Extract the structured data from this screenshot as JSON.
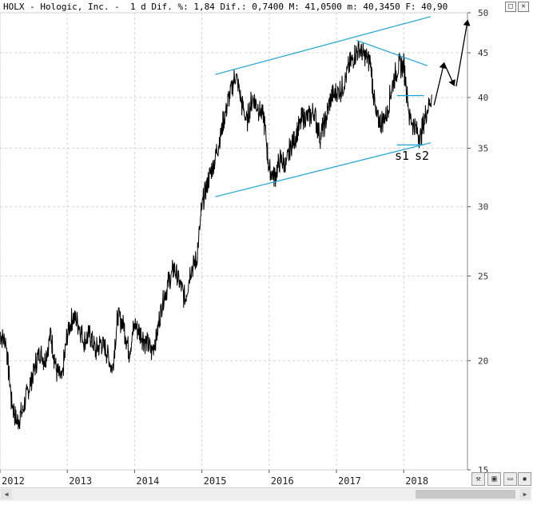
{
  "header": {
    "symbol": "HOLX",
    "company": "Hologic, Inc.",
    "text": "HOLX - Hologic, Inc. -  1 d Dif. %: 1,84 Dif.: 0,7400 M: 41,0500 m: 40,3450 F: 40,90"
  },
  "window_buttons": [
    "□",
    "✕"
  ],
  "toolbar": {
    "icons": [
      "ruler-icon",
      "save-icon",
      "minimize-icon",
      "close-icon"
    ]
  },
  "chart_data": {
    "type": "line",
    "title": "HOLX - Hologic, Inc.",
    "scale": "log",
    "ylim": [
      15,
      50
    ],
    "y_ticks": [
      15,
      20,
      25,
      30,
      35,
      40,
      45,
      50
    ],
    "x_ticks": [
      "2012",
      "2013",
      "2014",
      "2015",
      "2016",
      "2017",
      "2018"
    ],
    "grid": true,
    "series": [
      {
        "values": [
          [
            "2012-01",
            21.5
          ],
          [
            "2012-02",
            21.0
          ],
          [
            "2012-03",
            18.0
          ],
          [
            "2012-04",
            17.0
          ],
          [
            "2012-05",
            17.5
          ],
          [
            "2012-06",
            18.5
          ],
          [
            "2012-07",
            19.5
          ],
          [
            "2012-08",
            20.5
          ],
          [
            "2012-09",
            20.0
          ],
          [
            "2012-10",
            21.5
          ],
          [
            "2012-11",
            19.5
          ],
          [
            "2012-12",
            19.0
          ],
          [
            "2013-01",
            21.5
          ],
          [
            "2013-02",
            22.5
          ],
          [
            "2013-03",
            22.0
          ],
          [
            "2013-04",
            21.0
          ],
          [
            "2013-05",
            21.5
          ],
          [
            "2013-06",
            20.5
          ],
          [
            "2013-07",
            21.0
          ],
          [
            "2013-08",
            20.5
          ],
          [
            "2013-09",
            19.5
          ],
          [
            "2013-10",
            22.5
          ],
          [
            "2013-11",
            22.0
          ],
          [
            "2013-12",
            20.5
          ],
          [
            "2014-01",
            22.0
          ],
          [
            "2014-02",
            21.5
          ],
          [
            "2014-03",
            21.0
          ],
          [
            "2014-04",
            20.5
          ],
          [
            "2014-05",
            21.5
          ],
          [
            "2014-06",
            23.5
          ],
          [
            "2014-07",
            24.5
          ],
          [
            "2014-08",
            25.5
          ],
          [
            "2014-09",
            24.5
          ],
          [
            "2014-10",
            23.5
          ],
          [
            "2014-11",
            25.5
          ],
          [
            "2014-12",
            26.0
          ],
          [
            "2015-01",
            30.0
          ],
          [
            "2015-02",
            32.0
          ],
          [
            "2015-03",
            33.5
          ],
          [
            "2015-04",
            35.5
          ],
          [
            "2015-05",
            38.0
          ],
          [
            "2015-06",
            40.5
          ],
          [
            "2015-07",
            42.5
          ],
          [
            "2015-08",
            39.5
          ],
          [
            "2015-09",
            37.5
          ],
          [
            "2015-10",
            40.0
          ],
          [
            "2015-11",
            39.0
          ],
          [
            "2015-12",
            38.0
          ],
          [
            "2016-01",
            33.0
          ],
          [
            "2016-02",
            32.5
          ],
          [
            "2016-03",
            34.0
          ],
          [
            "2016-04",
            33.5
          ],
          [
            "2016-05",
            35.5
          ],
          [
            "2016-06",
            36.5
          ],
          [
            "2016-07",
            38.0
          ],
          [
            "2016-08",
            38.0
          ],
          [
            "2016-09",
            38.5
          ],
          [
            "2016-10",
            36.0
          ],
          [
            "2016-11",
            37.5
          ],
          [
            "2016-12",
            40.0
          ],
          [
            "2017-01",
            40.5
          ],
          [
            "2017-02",
            41.0
          ],
          [
            "2017-03",
            43.0
          ],
          [
            "2017-04",
            44.5
          ],
          [
            "2017-05",
            45.5
          ],
          [
            "2017-06",
            44.5
          ],
          [
            "2017-07",
            44.0
          ],
          [
            "2017-08",
            38.0
          ],
          [
            "2017-09",
            37.5
          ],
          [
            "2017-10",
            38.5
          ],
          [
            "2017-11",
            41.5
          ],
          [
            "2017-12",
            43.5
          ],
          [
            "2018-01",
            43.5
          ],
          [
            "2018-02",
            38.0
          ],
          [
            "2018-03",
            37.0
          ],
          [
            "2018-04",
            36.0
          ],
          [
            "2018-05",
            38.5
          ],
          [
            "2018-06",
            40.3
          ]
        ]
      }
    ],
    "annotations": {
      "labels": [
        "s1",
        "s2"
      ],
      "channel_color": "#1aa3d9",
      "projection_color": "#000000"
    }
  }
}
